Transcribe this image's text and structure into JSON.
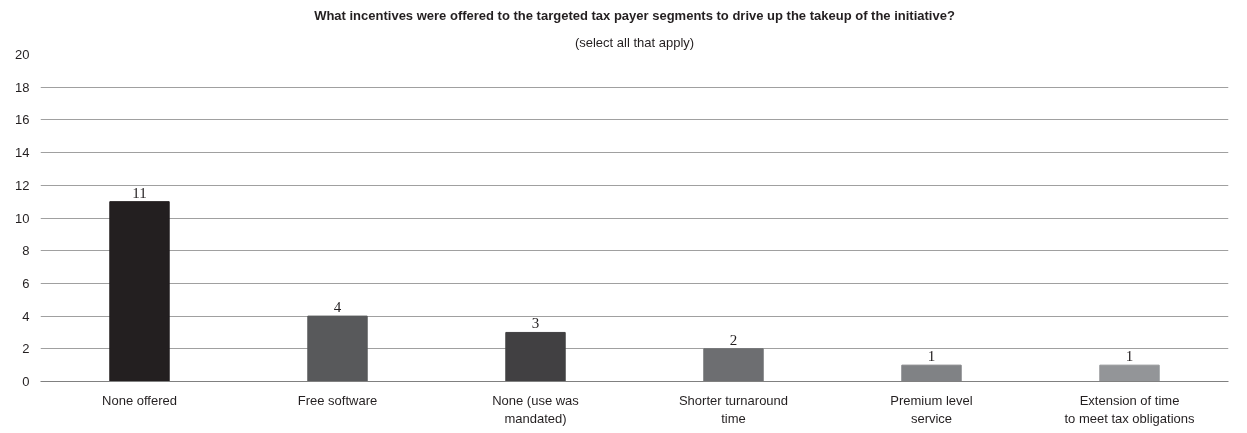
{
  "chart_data": {
    "type": "bar",
    "title": "What incentives were offered to the targeted tax payer segments to drive up the takeup of the initiative?",
    "subtitle": "(select all that apply)",
    "categories": [
      "None offered",
      "Free software",
      "None (use was mandated)",
      "Shorter turnaround time",
      "Premium level service",
      "Extension of time to meet tax obligations"
    ],
    "values": [
      11,
      4,
      3,
      2,
      1,
      1
    ],
    "colors": [
      "#231f20",
      "#58595b",
      "#414042",
      "#6d6e71",
      "#808285",
      "#939598"
    ],
    "ylim": [
      0,
      20
    ],
    "yticks": [
      0,
      2,
      4,
      6,
      8,
      10,
      12,
      14,
      16,
      18,
      20
    ],
    "grid": "y",
    "data_labels": true
  }
}
